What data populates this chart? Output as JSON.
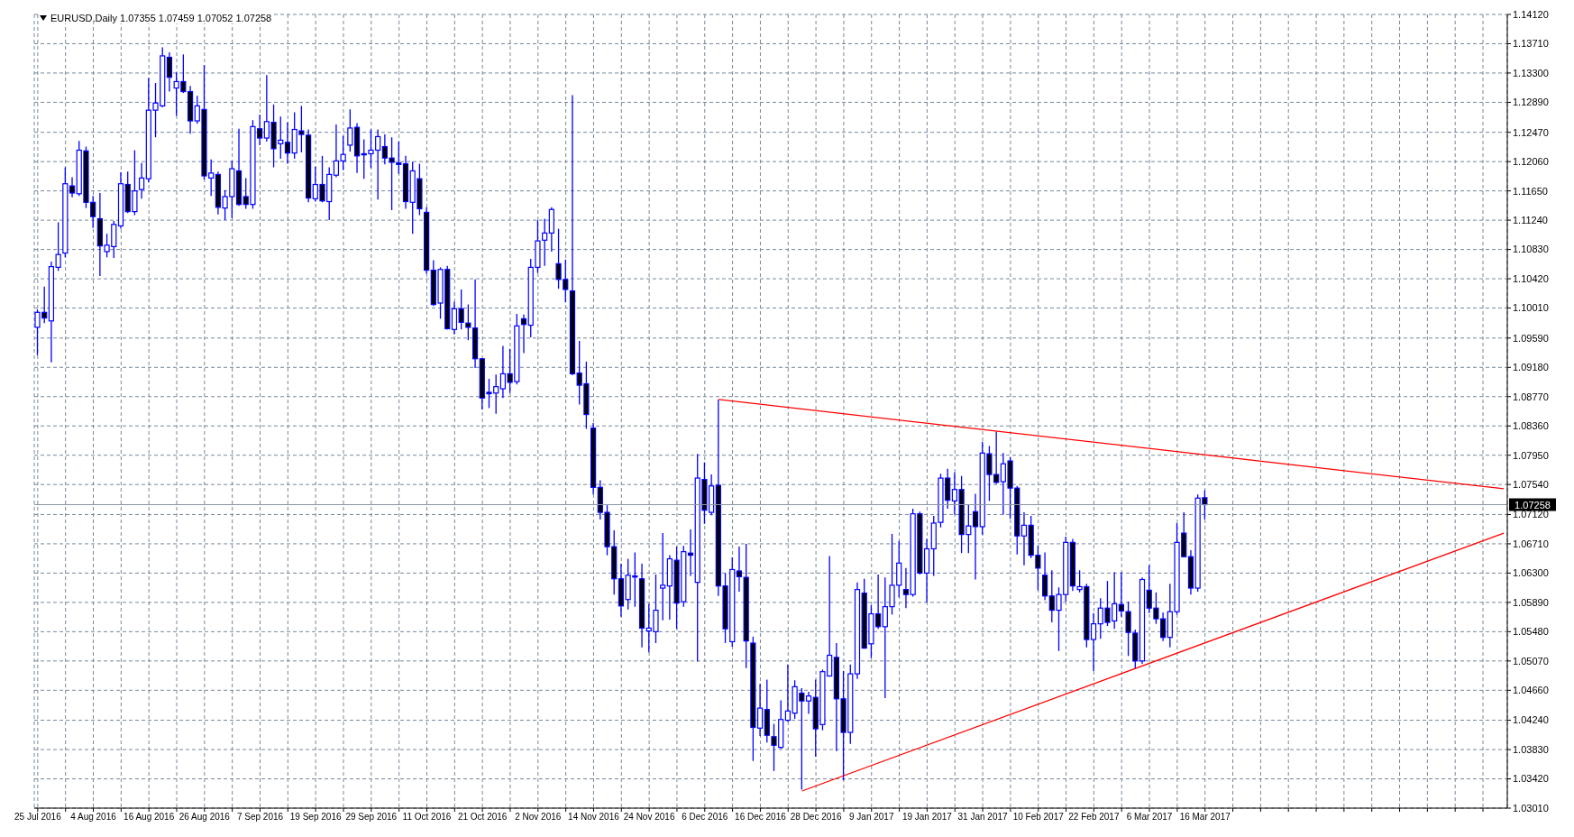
{
  "chart_data": {
    "type": "candlestick",
    "title": "EURUSD,Daily  1.07355 1.07459 1.07052 1.07258",
    "color": "#0000ff",
    "categories": [
      "25 Jul 2016",
      null,
      null,
      null,
      null,
      null,
      null,
      null,
      "4 Aug 2016",
      null,
      null,
      null,
      null,
      null,
      null,
      null,
      "16 Aug 2016",
      null,
      null,
      null,
      null,
      null,
      null,
      null,
      "26 Aug 2016",
      null,
      null,
      null,
      null,
      null,
      null,
      null,
      "7 Sep 2016",
      null,
      null,
      null,
      null,
      null,
      null,
      null,
      "19 Sep 2016",
      null,
      null,
      null,
      null,
      null,
      null,
      null,
      "29 Sep 2016",
      null,
      null,
      null,
      null,
      null,
      null,
      null,
      "11 Oct 2016",
      null,
      null,
      null,
      null,
      null,
      null,
      null,
      "21 Oct 2016",
      null,
      null,
      null,
      null,
      null,
      null,
      null,
      "2 Nov 2016",
      null,
      null,
      null,
      null,
      null,
      null,
      null,
      "14 Nov 2016",
      null,
      null,
      null,
      null,
      null,
      null,
      null,
      "24 Nov 2016",
      null,
      null,
      null,
      null,
      null,
      null,
      null,
      "6 Dec 2016",
      null,
      null,
      null,
      null,
      null,
      null,
      null,
      "16 Dec 2016",
      null,
      null,
      null,
      null,
      null,
      null,
      null,
      "28 Dec 2016",
      null,
      null,
      null,
      null,
      null,
      null,
      null,
      "9 Jan 2017",
      null,
      null,
      null,
      null,
      null,
      null,
      null,
      "19 Jan 2017",
      null,
      null,
      null,
      null,
      null,
      null,
      null,
      "31 Jan 2017",
      null,
      null,
      null,
      null,
      null,
      null,
      null,
      "10 Feb 2017",
      null,
      null,
      null,
      null,
      null,
      null,
      null,
      "22 Feb 2017",
      null,
      null,
      null,
      null,
      null,
      null,
      null,
      "6 Mar 2017",
      null,
      null,
      null,
      null,
      null,
      null,
      null,
      "16 Mar 2017",
      null,
      null,
      null,
      null,
      null,
      null,
      null,
      null,
      null,
      null,
      null,
      null,
      null,
      null,
      null,
      null,
      null,
      null,
      null,
      null,
      null,
      null,
      null,
      null,
      null,
      null,
      null,
      null,
      null,
      null,
      null,
      null,
      null,
      null,
      null,
      null,
      null,
      null,
      null,
      null,
      null,
      null,
      null
    ],
    "ohlc": [
      [
        1.0974,
        1.0999,
        1.0935,
        1.0995
      ],
      [
        1.0995,
        1.1031,
        1.098,
        1.0987
      ],
      [
        1.0983,
        1.1066,
        1.0925,
        1.1059
      ],
      [
        1.1058,
        1.1121,
        1.1053,
        1.1076
      ],
      [
        1.1078,
        1.1198,
        1.1072,
        1.1175
      ],
      [
        1.1172,
        1.1184,
        1.1156,
        1.1162
      ],
      [
        1.1161,
        1.1235,
        1.1158,
        1.1222
      ],
      [
        1.1221,
        1.1227,
        1.1141,
        1.1149
      ],
      [
        1.1149,
        1.1158,
        1.1113,
        1.1129
      ],
      [
        1.1126,
        1.1162,
        1.1046,
        1.1088
      ],
      [
        1.108,
        1.1105,
        1.1072,
        1.1089
      ],
      [
        1.1087,
        1.1123,
        1.1071,
        1.1118
      ],
      [
        1.1116,
        1.1191,
        1.1112,
        1.1175
      ],
      [
        1.1174,
        1.1192,
        1.1134,
        1.1136
      ],
      [
        1.1136,
        1.1222,
        1.1131,
        1.1165
      ],
      [
        1.1167,
        1.1204,
        1.1154,
        1.1183
      ],
      [
        1.1182,
        1.1323,
        1.1177,
        1.1278
      ],
      [
        1.1278,
        1.1316,
        1.124,
        1.1288
      ],
      [
        1.1284,
        1.1366,
        1.1282,
        1.1354
      ],
      [
        1.1352,
        1.1359,
        1.1304,
        1.1324
      ],
      [
        1.1309,
        1.1331,
        1.127,
        1.1318
      ],
      [
        1.1318,
        1.1356,
        1.1302,
        1.1304
      ],
      [
        1.1304,
        1.1312,
        1.1245,
        1.1263
      ],
      [
        1.1263,
        1.1298,
        1.1259,
        1.1284
      ],
      [
        1.1279,
        1.1341,
        1.1181,
        1.1186
      ],
      [
        1.1183,
        1.1209,
        1.1158,
        1.119
      ],
      [
        1.1188,
        1.1192,
        1.1132,
        1.1142
      ],
      [
        1.1141,
        1.1166,
        1.1124,
        1.1157
      ],
      [
        1.1157,
        1.1207,
        1.1127,
        1.1196
      ],
      [
        1.1193,
        1.1252,
        1.1144,
        1.1146
      ],
      [
        1.1157,
        1.1183,
        1.114,
        1.1146
      ],
      [
        1.1146,
        1.1264,
        1.114,
        1.1255
      ],
      [
        1.1252,
        1.1272,
        1.1229,
        1.1239
      ],
      [
        1.1239,
        1.1327,
        1.1234,
        1.1262
      ],
      [
        1.1261,
        1.1286,
        1.1198,
        1.1224
      ],
      [
        1.1231,
        1.1269,
        1.121,
        1.1236
      ],
      [
        1.1233,
        1.1261,
        1.1203,
        1.1218
      ],
      [
        1.1218,
        1.1275,
        1.121,
        1.1251
      ],
      [
        1.1249,
        1.1284,
        1.1219,
        1.1244
      ],
      [
        1.1243,
        1.1251,
        1.1149,
        1.1155
      ],
      [
        1.1154,
        1.1199,
        1.115,
        1.1174
      ],
      [
        1.1174,
        1.1214,
        1.1149,
        1.1151
      ],
      [
        1.115,
        1.1198,
        1.1124,
        1.1188
      ],
      [
        1.1187,
        1.1258,
        1.1184,
        1.1207
      ],
      [
        1.1207,
        1.1242,
        1.1194,
        1.1216
      ],
      [
        1.1229,
        1.1279,
        1.122,
        1.1253
      ],
      [
        1.1254,
        1.126,
        1.119,
        1.1214
      ],
      [
        1.1217,
        1.1237,
        1.1182,
        1.1216
      ],
      [
        1.1217,
        1.1251,
        1.1197,
        1.1222
      ],
      [
        1.1222,
        1.1251,
        1.1153,
        1.1241
      ],
      [
        1.1227,
        1.1244,
        1.1202,
        1.1211
      ],
      [
        1.1211,
        1.124,
        1.1138,
        1.1205
      ],
      [
        1.1204,
        1.1234,
        1.1189,
        1.1202
      ],
      [
        1.1203,
        1.1214,
        1.114,
        1.115
      ],
      [
        1.1149,
        1.1206,
        1.1105,
        1.1193
      ],
      [
        1.1182,
        1.1203,
        1.1131,
        1.114
      ],
      [
        1.1135,
        1.1142,
        1.1049,
        1.1054
      ],
      [
        1.1054,
        1.1068,
        1.1004,
        1.1006
      ],
      [
        1.1008,
        1.1058,
        1.0986,
        1.1055
      ],
      [
        1.1055,
        1.106,
        1.0971,
        1.0972
      ],
      [
        1.0971,
        1.101,
        1.0964,
        1.1
      ],
      [
        1.1,
        1.1027,
        1.0971,
        1.0981
      ],
      [
        1.098,
        1.1006,
        1.0956,
        1.0974
      ],
      [
        1.0973,
        1.1041,
        1.0917,
        1.093
      ],
      [
        1.093,
        1.0931,
        1.0859,
        1.0875
      ],
      [
        1.0883,
        1.0902,
        1.0861,
        1.0881
      ],
      [
        1.0882,
        1.0908,
        1.0853,
        1.0891
      ],
      [
        1.0888,
        1.0948,
        1.0875,
        1.0909
      ],
      [
        1.0909,
        1.0944,
        1.0882,
        1.0897
      ],
      [
        1.0898,
        1.0993,
        1.0894,
        1.0976
      ],
      [
        1.0986,
        1.0992,
        1.0938,
        1.0978
      ],
      [
        1.0977,
        1.107,
        1.096,
        1.1058
      ],
      [
        1.1058,
        1.1124,
        1.105,
        1.1095
      ],
      [
        1.1096,
        1.1126,
        1.106,
        1.1106
      ],
      [
        1.1106,
        1.1142,
        1.108,
        1.1139
      ],
      [
        1.1063,
        1.1112,
        1.1028,
        1.1041
      ],
      [
        1.1041,
        1.1069,
        1.1009,
        1.1027
      ],
      [
        1.1025,
        1.1299,
        1.0907,
        1.0909
      ],
      [
        1.091,
        1.0955,
        1.0866,
        1.0893
      ],
      [
        1.0895,
        1.0926,
        1.0832,
        1.0852
      ],
      [
        1.0833,
        1.084,
        1.074,
        1.075
      ],
      [
        1.075,
        1.076,
        1.0705,
        1.0715
      ],
      [
        1.0715,
        1.0725,
        1.0655,
        1.0667
      ],
      [
        1.0667,
        1.069,
        1.06,
        1.0622
      ],
      [
        1.0622,
        1.0643,
        1.0569,
        1.0584
      ],
      [
        1.0593,
        1.065,
        1.0579,
        1.0627
      ],
      [
        1.0626,
        1.0659,
        1.0583,
        1.0625
      ],
      [
        1.0622,
        1.0643,
        1.0526,
        1.0553
      ],
      [
        1.0549,
        1.0587,
        1.0519,
        1.0553
      ],
      [
        1.0548,
        1.0628,
        1.0532,
        1.0578
      ],
      [
        1.0609,
        1.0686,
        1.0564,
        1.0613
      ],
      [
        1.0612,
        1.0655,
        1.0565,
        1.065
      ],
      [
        1.0648,
        1.0667,
        1.0552,
        1.0588
      ],
      [
        1.059,
        1.0668,
        1.0583,
        1.066
      ],
      [
        1.0658,
        1.0691,
        1.0626,
        1.0655
      ],
      [
        1.0617,
        1.0797,
        1.0506,
        1.0763
      ],
      [
        1.0761,
        1.0785,
        1.0699,
        1.0718
      ],
      [
        1.0715,
        1.0768,
        1.0711,
        1.0752
      ],
      [
        1.0753,
        1.0873,
        1.0598,
        1.0612
      ],
      [
        1.0612,
        1.063,
        1.0532,
        1.0552
      ],
      [
        1.0534,
        1.0652,
        1.0527,
        1.0635
      ],
      [
        1.0633,
        1.0667,
        1.0604,
        1.0625
      ],
      [
        1.0624,
        1.0671,
        1.0497,
        1.0535
      ],
      [
        1.0532,
        1.0541,
        1.0367,
        1.0414
      ],
      [
        1.0413,
        1.0475,
        1.0402,
        1.0441
      ],
      [
        1.0439,
        1.0481,
        1.0393,
        1.0403
      ],
      [
        1.0401,
        1.0419,
        1.0353,
        1.0389
      ],
      [
        1.0386,
        1.0452,
        1.0384,
        1.0425
      ],
      [
        1.0424,
        1.0502,
        1.0422,
        1.0437
      ],
      [
        1.0434,
        1.048,
        1.0426,
        1.0471
      ],
      [
        1.0462,
        1.0469,
        1.0327,
        1.0451
      ],
      [
        1.0451,
        1.0464,
        1.0433,
        1.0458
      ],
      [
        1.0456,
        1.0481,
        1.0373,
        1.0412
      ],
      [
        1.0418,
        1.0495,
        1.041,
        1.0492
      ],
      [
        1.0486,
        1.0654,
        1.0485,
        1.0515
      ],
      [
        1.0512,
        1.0532,
        1.0381,
        1.0454
      ],
      [
        1.0454,
        1.0493,
        1.034,
        1.0407
      ],
      [
        1.0407,
        1.0502,
        1.0391,
        1.0489
      ],
      [
        1.0489,
        1.0617,
        1.0482,
        1.0607
      ],
      [
        1.0602,
        1.0622,
        1.0524,
        1.0525
      ],
      [
        1.0531,
        1.0585,
        1.0511,
        1.0573
      ],
      [
        1.0573,
        1.0628,
        1.0552,
        1.0555
      ],
      [
        1.0555,
        1.0624,
        1.0455,
        1.0583
      ],
      [
        1.0583,
        1.0685,
        1.0572,
        1.0613
      ],
      [
        1.0613,
        1.0675,
        1.0596,
        1.0644
      ],
      [
        1.0607,
        1.0637,
        1.0581,
        1.06
      ],
      [
        1.06,
        1.072,
        1.0597,
        1.0713
      ],
      [
        1.0713,
        1.0716,
        1.0628,
        1.063
      ],
      [
        1.063,
        1.0678,
        1.0589,
        1.0664
      ],
      [
        1.0664,
        1.071,
        1.0626,
        1.07
      ],
      [
        1.0701,
        1.0769,
        1.0694,
        1.0763
      ],
      [
        1.0763,
        1.0776,
        1.072,
        1.0732
      ],
      [
        1.0731,
        1.0771,
        1.0712,
        1.0747
      ],
      [
        1.0747,
        1.0766,
        1.0658,
        1.0684
      ],
      [
        1.0684,
        1.0726,
        1.0658,
        1.0696
      ],
      [
        1.0716,
        1.0741,
        1.0621,
        1.0695
      ],
      [
        1.0695,
        1.0814,
        1.0684,
        1.0798
      ],
      [
        1.0797,
        1.0808,
        1.0731,
        1.0768
      ],
      [
        1.0768,
        1.0828,
        1.0755,
        1.0757
      ],
      [
        1.0758,
        1.0798,
        1.0712,
        1.0783
      ],
      [
        1.0787,
        1.0792,
        1.0706,
        1.0749
      ],
      [
        1.0749,
        1.0752,
        1.0656,
        1.0682
      ],
      [
        1.0682,
        1.0715,
        1.0641,
        1.0697
      ],
      [
        1.0697,
        1.071,
        1.0651,
        1.0655
      ],
      [
        1.0655,
        1.0668,
        1.0606,
        1.0637
      ],
      [
        1.0627,
        1.0659,
        1.0592,
        1.0598
      ],
      [
        1.0598,
        1.0634,
        1.0561,
        1.0578
      ],
      [
        1.0578,
        1.061,
        1.0521,
        1.06
      ],
      [
        1.06,
        1.0681,
        1.059,
        1.0673
      ],
      [
        1.0673,
        1.0678,
        1.0605,
        1.0612
      ],
      [
        1.0607,
        1.0634,
        1.0603,
        1.0611
      ],
      [
        1.0611,
        1.0615,
        1.0526,
        1.0537
      ],
      [
        1.0537,
        1.0574,
        1.0493,
        1.0559
      ],
      [
        1.0559,
        1.0595,
        1.0538,
        1.0581
      ],
      [
        1.0581,
        1.0619,
        1.0556,
        1.0561
      ],
      [
        1.0563,
        1.0631,
        1.0552,
        1.0587
      ],
      [
        1.0586,
        1.0631,
        1.0569,
        1.0577
      ],
      [
        1.0576,
        1.059,
        1.0514,
        1.0547
      ],
      [
        1.0546,
        1.0551,
        1.0496,
        1.0507
      ],
      [
        1.0507,
        1.0624,
        1.0503,
        1.0621
      ],
      [
        1.0606,
        1.0641,
        1.0574,
        1.0581
      ],
      [
        1.0581,
        1.0603,
        1.0559,
        1.0566
      ],
      [
        1.0566,
        1.0575,
        1.0535,
        1.054
      ],
      [
        1.054,
        1.0615,
        1.0526,
        1.0576
      ],
      [
        1.0576,
        1.07,
        1.0572,
        1.0673
      ],
      [
        1.0686,
        1.0715,
        1.0652,
        1.0653
      ],
      [
        1.0653,
        1.0662,
        1.06,
        1.0609
      ],
      [
        1.0609,
        1.074,
        1.0604,
        1.0735
      ],
      [
        1.07355,
        1.07459,
        1.07052,
        1.07258
      ],
      null,
      null,
      null,
      null,
      null,
      null,
      null,
      null,
      null,
      null,
      null,
      null,
      null,
      null,
      null,
      null,
      null,
      null,
      null,
      null,
      null,
      null,
      null,
      null,
      null,
      null,
      null,
      null,
      null,
      null,
      null,
      null,
      null,
      null,
      null,
      null,
      null,
      null,
      null,
      null,
      null,
      null,
      null
    ],
    "series": [
      {
        "type": "line",
        "color": "#ff0000",
        "values": [
          null,
          null,
          null,
          null,
          null,
          null,
          null,
          null,
          null,
          null,
          null,
          null,
          null,
          null,
          null,
          null,
          null,
          null,
          null,
          null,
          null,
          null,
          null,
          null,
          null,
          null,
          null,
          null,
          null,
          null,
          null,
          null,
          null,
          null,
          null,
          null,
          null,
          null,
          null,
          null,
          null,
          null,
          null,
          null,
          null,
          null,
          null,
          null,
          null,
          null,
          null,
          null,
          null,
          null,
          null,
          null,
          null,
          null,
          null,
          null,
          null,
          null,
          null,
          null,
          null,
          null,
          null,
          null,
          null,
          null,
          null,
          null,
          null,
          null,
          null,
          null,
          null,
          null,
          null,
          null,
          null,
          null,
          null,
          null,
          null,
          null,
          null,
          null,
          null,
          null,
          null,
          null,
          null,
          null,
          null,
          null,
          null,
          null,
          1.0873,
          null,
          null,
          null,
          null,
          null,
          null,
          null,
          null,
          null,
          null,
          null,
          null,
          null,
          null,
          null,
          null,
          null,
          null,
          null,
          null,
          null,
          null,
          null,
          null,
          null,
          null,
          null,
          null,
          null,
          null,
          null,
          null,
          null,
          null,
          null,
          null,
          null,
          null,
          null,
          null,
          null,
          null,
          null,
          null,
          null,
          null,
          null,
          null,
          null,
          null,
          null,
          null,
          null,
          null,
          null,
          null,
          null,
          null,
          null,
          null,
          null,
          null,
          null,
          null,
          null,
          null,
          null,
          null,
          null,
          null,
          null,
          null,
          null,
          null,
          null,
          null,
          null,
          null,
          null,
          null,
          null,
          null,
          null,
          null,
          null,
          null,
          null,
          null,
          null,
          null,
          null,
          null,
          null,
          null,
          null,
          null,
          null,
          null,
          null,
          null,
          null,
          null,
          null,
          null,
          null,
          null,
          null,
          null,
          null,
          null,
          null,
          null,
          1.0748
        ]
      },
      {
        "type": "line",
        "color": "#ff0000",
        "values": [
          null,
          null,
          null,
          null,
          null,
          null,
          null,
          null,
          null,
          null,
          null,
          null,
          null,
          null,
          null,
          null,
          null,
          null,
          null,
          null,
          null,
          null,
          null,
          null,
          null,
          null,
          null,
          null,
          null,
          null,
          null,
          null,
          null,
          null,
          null,
          null,
          null,
          null,
          null,
          null,
          null,
          null,
          null,
          null,
          null,
          null,
          null,
          null,
          null,
          null,
          null,
          null,
          null,
          null,
          null,
          null,
          null,
          null,
          null,
          null,
          null,
          null,
          null,
          null,
          null,
          null,
          null,
          null,
          null,
          null,
          null,
          null,
          null,
          null,
          null,
          null,
          null,
          null,
          null,
          null,
          null,
          null,
          null,
          null,
          null,
          null,
          null,
          null,
          null,
          null,
          null,
          null,
          null,
          null,
          null,
          null,
          null,
          null,
          null,
          null,
          null,
          null,
          null,
          null,
          null,
          null,
          null,
          null,
          null,
          null,
          1.0325,
          null,
          null,
          null,
          null,
          null,
          null,
          null,
          null,
          null,
          null,
          null,
          null,
          null,
          null,
          null,
          null,
          null,
          null,
          null,
          null,
          null,
          null,
          null,
          null,
          null,
          null,
          null,
          null,
          null,
          null,
          null,
          null,
          null,
          null,
          null,
          null,
          null,
          null,
          null,
          null,
          null,
          null,
          null,
          null,
          null,
          null,
          null,
          null,
          null,
          null,
          null,
          null,
          null,
          null,
          null,
          null,
          null,
          null,
          null,
          null,
          null,
          null,
          null,
          null,
          null,
          null,
          null,
          null,
          null,
          null,
          null,
          null,
          null,
          null,
          null,
          null,
          null,
          null,
          null,
          null,
          null,
          null,
          null,
          null,
          null,
          null,
          null,
          null,
          null,
          null,
          null,
          null,
          null,
          null,
          null,
          null,
          null,
          null,
          null,
          null,
          1.0686
        ]
      }
    ],
    "ylim": [
      1.0301,
      1.1412
    ],
    "yticks": [
      {
        "value": 1.1412,
        "label": "1.14120"
      },
      {
        "value": 1.1371,
        "label": "1.13710"
      },
      {
        "value": 1.133,
        "label": "1.13300"
      },
      {
        "value": 1.1289,
        "label": "1.12890"
      },
      {
        "value": 1.1247,
        "label": "1.12470"
      },
      {
        "value": 1.1206,
        "label": "1.12060"
      },
      {
        "value": 1.1165,
        "label": "1.11650"
      },
      {
        "value": 1.1124,
        "label": "1.11240"
      },
      {
        "value": 1.1083,
        "label": "1.10830"
      },
      {
        "value": 1.1042,
        "label": "1.10420"
      },
      {
        "value": 1.1001,
        "label": "1.10010"
      },
      {
        "value": 1.0959,
        "label": "1.09590"
      },
      {
        "value": 1.0918,
        "label": "1.09180"
      },
      {
        "value": 1.0877,
        "label": "1.08770"
      },
      {
        "value": 1.0836,
        "label": "1.08360"
      },
      {
        "value": 1.0795,
        "label": "1.07950"
      },
      {
        "value": 1.0754,
        "label": "1.07540"
      },
      {
        "value": 1.0712,
        "label": "1.07120"
      },
      {
        "value": 1.0671,
        "label": "1.06710"
      },
      {
        "value": 1.063,
        "label": "1.06300"
      },
      {
        "value": 1.0589,
        "label": "1.05890"
      },
      {
        "value": 1.0548,
        "label": "1.05480"
      },
      {
        "value": 1.0507,
        "label": "1.05070"
      },
      {
        "value": 1.0466,
        "label": "1.04660"
      },
      {
        "value": 1.0424,
        "label": "1.04240"
      },
      {
        "value": 1.0383,
        "label": "1.03830"
      },
      {
        "value": 1.0342,
        "label": "1.03420"
      },
      {
        "value": 1.0301,
        "label": "1.03010"
      }
    ],
    "grid": true,
    "ref_lines": [
      {
        "axis": "y",
        "value": 1.07258,
        "label": "1.07258",
        "color": "#8c96a0"
      }
    ]
  }
}
